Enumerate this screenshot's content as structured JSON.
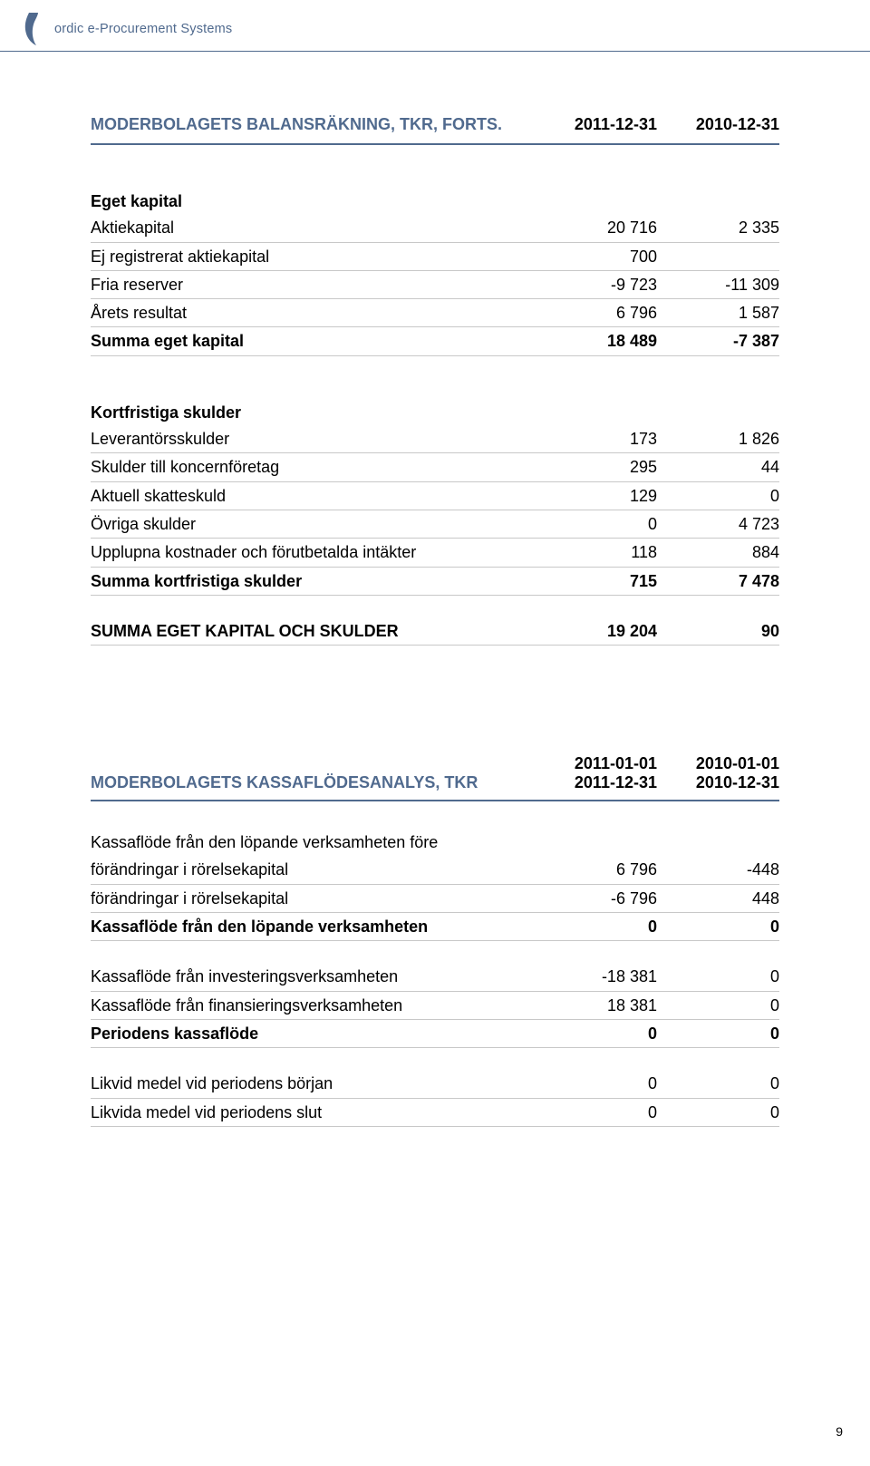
{
  "header": {
    "brand_text": "ordic e-Procurement Systems"
  },
  "section1": {
    "title": "MODERBOLAGETS BALANSRÄKNING, TKR, FORTS.",
    "date1": "2011-12-31",
    "date2": "2010-12-31",
    "eget_kapital_header": "Eget kapital",
    "rows_eget": [
      {
        "label": "Aktiekapital",
        "v1": "20 716",
        "v2": "2 335"
      },
      {
        "label": "Ej registrerat aktiekapital",
        "v1": "700",
        "v2": ""
      },
      {
        "label": "Fria reserver",
        "v1": "-9 723",
        "v2": "-11 309"
      },
      {
        "label": "Årets resultat",
        "v1": "6 796",
        "v2": "1 587"
      }
    ],
    "summa_eget": {
      "label": "Summa eget kapital",
      "v1": "18 489",
      "v2": "-7 387"
    },
    "kortfristiga_header": "Kortfristiga skulder",
    "rows_kort": [
      {
        "label": "Leverantörsskulder",
        "v1": "173",
        "v2": "1 826"
      },
      {
        "label": "Skulder till koncernföretag",
        "v1": "295",
        "v2": "44"
      },
      {
        "label": "Aktuell skatteskuld",
        "v1": "129",
        "v2": "0"
      },
      {
        "label": "Övriga skulder",
        "v1": "0",
        "v2": "4 723"
      },
      {
        "label": "Upplupna kostnader och förutbetalda intäkter",
        "v1": "118",
        "v2": "884"
      }
    ],
    "summa_kort": {
      "label": "Summa kortfristiga skulder",
      "v1": "715",
      "v2": "7 478"
    },
    "total": {
      "label": "SUMMA EGET KAPITAL OCH SKULDER",
      "v1": "19 204",
      "v2": "90"
    }
  },
  "section2": {
    "title": "MODERBOLAGETS KASSAFLÖDESANALYS, TKR",
    "date1_top": "2011-01-01",
    "date2_top": "2010-01-01",
    "date1_bot": "2011-12-31",
    "date2_bot": "2010-12-31",
    "block1": [
      {
        "label": "Kassaflöde från den löpande verksamheten före",
        "v1": "",
        "v2": "",
        "noborder": true
      },
      {
        "label": "förändringar i rörelsekapital",
        "v1": "6 796",
        "v2": "-448"
      },
      {
        "label": "förändringar i rörelsekapital",
        "v1": "-6 796",
        "v2": "448"
      }
    ],
    "summa_lop": {
      "label": "Kassaflöde från den löpande verksamheten",
      "v1": "0",
      "v2": "0"
    },
    "block2": [
      {
        "label": "Kassaflöde från investeringsverksamheten",
        "v1": "-18 381",
        "v2": "0"
      },
      {
        "label": "Kassaflöde från finansieringsverksamheten",
        "v1": "18 381",
        "v2": "0"
      }
    ],
    "period": {
      "label": "Periodens kassaflöde",
      "v1": "0",
      "v2": "0"
    },
    "block3": [
      {
        "label": "Likvid medel vid periodens början",
        "v1": "0",
        "v2": "0"
      },
      {
        "label": "Likvida medel vid periodens slut",
        "v1": "0",
        "v2": "0"
      }
    ]
  },
  "page_number": "9",
  "colors": {
    "accent": "#506a8e",
    "rule": "#c8c8c8",
    "text": "#000000",
    "bg": "#ffffff"
  }
}
